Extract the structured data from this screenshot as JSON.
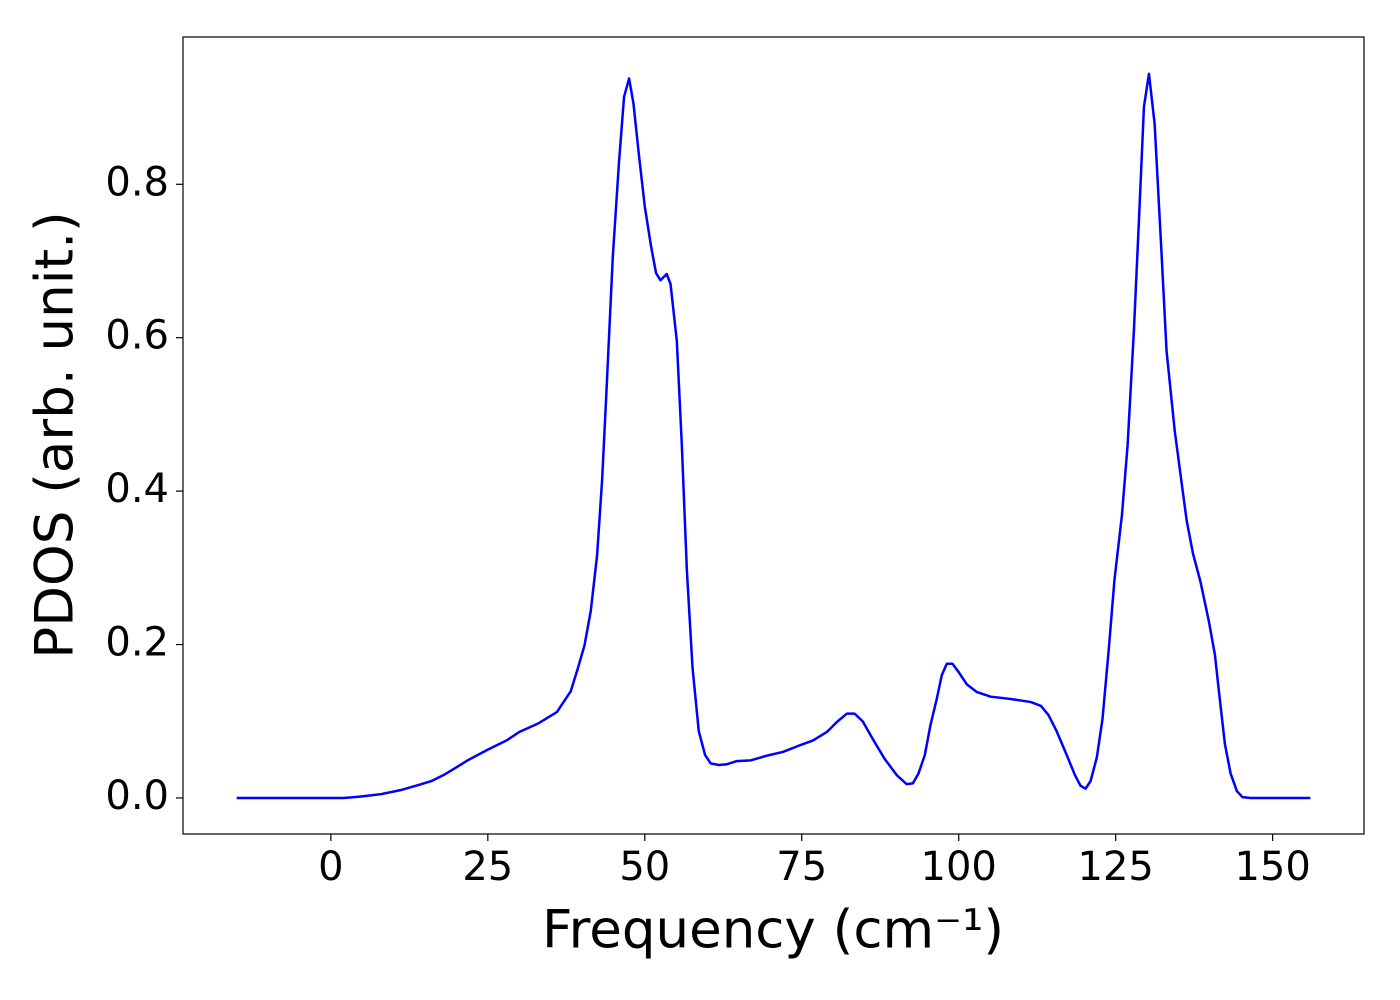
{
  "chart_data": {
    "type": "line",
    "xlabel": "Frequency (cm⁻¹)",
    "ylabel": "PDOS (arb. unit.)",
    "color": "#0000ff",
    "xlim": [
      -23.55,
      164.55
    ],
    "ylim": [
      -0.047,
      0.992
    ],
    "xticks": [
      0,
      25,
      50,
      75,
      100,
      125,
      150
    ],
    "yticks": [
      {
        "value": 0,
        "label": "0.0"
      },
      0.2,
      0.4,
      0.6,
      0.8
    ],
    "x": [
      -15,
      -10,
      -5,
      0,
      2,
      3,
      5,
      8,
      11,
      14,
      16,
      18,
      20,
      22,
      25,
      28,
      30,
      33,
      36,
      38.2,
      39.3,
      40.4,
      41.4,
      42.4,
      43.2,
      43.9,
      44.9,
      45.9,
      46.7,
      47.5,
      48.2,
      49.0,
      50.0,
      51.0,
      51.8,
      52.5,
      53.5,
      54.1,
      55.1,
      55.9,
      56.7,
      57.6,
      58.6,
      59.6,
      60.5,
      61.8,
      63.1,
      64.6,
      66.9,
      69.4,
      72.0,
      74.8,
      76.8,
      79.0,
      80.6,
      82.2,
      83.4,
      84.7,
      86.3,
      88.2,
      90.1,
      91.7,
      92.7,
      93.6,
      94.6,
      95.5,
      96.5,
      97.3,
      98.1,
      99.0,
      100.0,
      101.3,
      102.9,
      105.1,
      108.3,
      111.5,
      113.1,
      114.3,
      115.6,
      117.2,
      118.5,
      119.4,
      120.2,
      121.0,
      122.0,
      122.9,
      123.9,
      124.8,
      126.0,
      126.9,
      127.9,
      128.7,
      129.5,
      130.3,
      131.2,
      132.2,
      133.1,
      134.4,
      135.4,
      136.3,
      137.3,
      138.5,
      139.8,
      140.8,
      141.4,
      142.4,
      143.3,
      144.3,
      145.2,
      146.5,
      150,
      156
    ],
    "values": [
      0,
      0,
      0,
      0,
      0,
      0.0005,
      0.002,
      0.005,
      0.01,
      0.017,
      0.022,
      0.03,
      0.04,
      0.05,
      0.063,
      0.075,
      0.086,
      0.097,
      0.112,
      0.139,
      0.168,
      0.199,
      0.244,
      0.316,
      0.414,
      0.531,
      0.705,
      0.83,
      0.914,
      0.938,
      0.905,
      0.843,
      0.771,
      0.719,
      0.684,
      0.675,
      0.683,
      0.67,
      0.596,
      0.46,
      0.297,
      0.17,
      0.087,
      0.056,
      0.045,
      0.043,
      0.044,
      0.048,
      0.049,
      0.055,
      0.06,
      0.069,
      0.075,
      0.086,
      0.099,
      0.11,
      0.11,
      0.1,
      0.077,
      0.051,
      0.03,
      0.018,
      0.019,
      0.032,
      0.056,
      0.095,
      0.129,
      0.16,
      0.175,
      0.175,
      0.164,
      0.148,
      0.138,
      0.132,
      0.129,
      0.125,
      0.12,
      0.108,
      0.087,
      0.056,
      0.03,
      0.016,
      0.012,
      0.022,
      0.053,
      0.103,
      0.194,
      0.284,
      0.369,
      0.46,
      0.609,
      0.752,
      0.901,
      0.944,
      0.879,
      0.726,
      0.583,
      0.479,
      0.417,
      0.362,
      0.319,
      0.282,
      0.232,
      0.187,
      0.142,
      0.07,
      0.032,
      0.009,
      0.001,
      0,
      0,
      0
    ]
  }
}
